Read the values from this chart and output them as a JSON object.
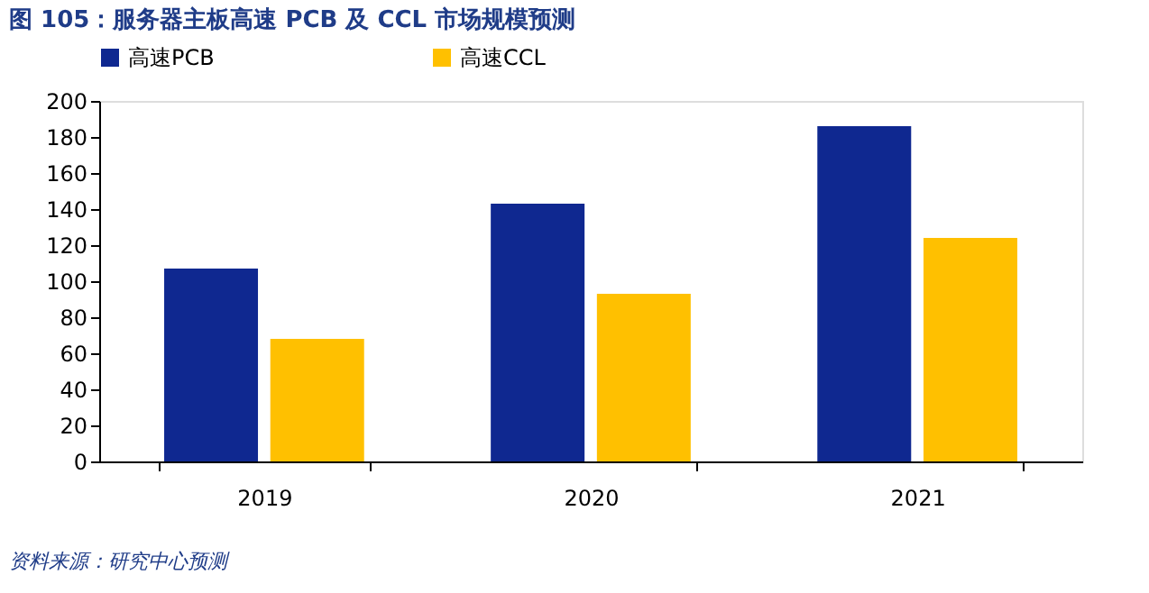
{
  "chart_data": {
    "type": "bar",
    "title": "图 105：服务器主板高速 PCB 及 CCL 市场规模预测",
    "categories": [
      "2019",
      "2020",
      "2021"
    ],
    "series": [
      {
        "name": "高速PCB",
        "color": "#0f2890",
        "values": [
          107,
          143,
          186
        ]
      },
      {
        "name": "高速CCL",
        "color": "#ffc000",
        "values": [
          68,
          93,
          124
        ]
      }
    ],
    "ylim": [
      0,
      200
    ],
    "yticks": [
      0,
      20,
      40,
      60,
      80,
      100,
      120,
      140,
      160,
      180,
      200
    ],
    "grid": false,
    "legend": "top",
    "annotations": [
      "资料来源：研究中心预测"
    ]
  }
}
